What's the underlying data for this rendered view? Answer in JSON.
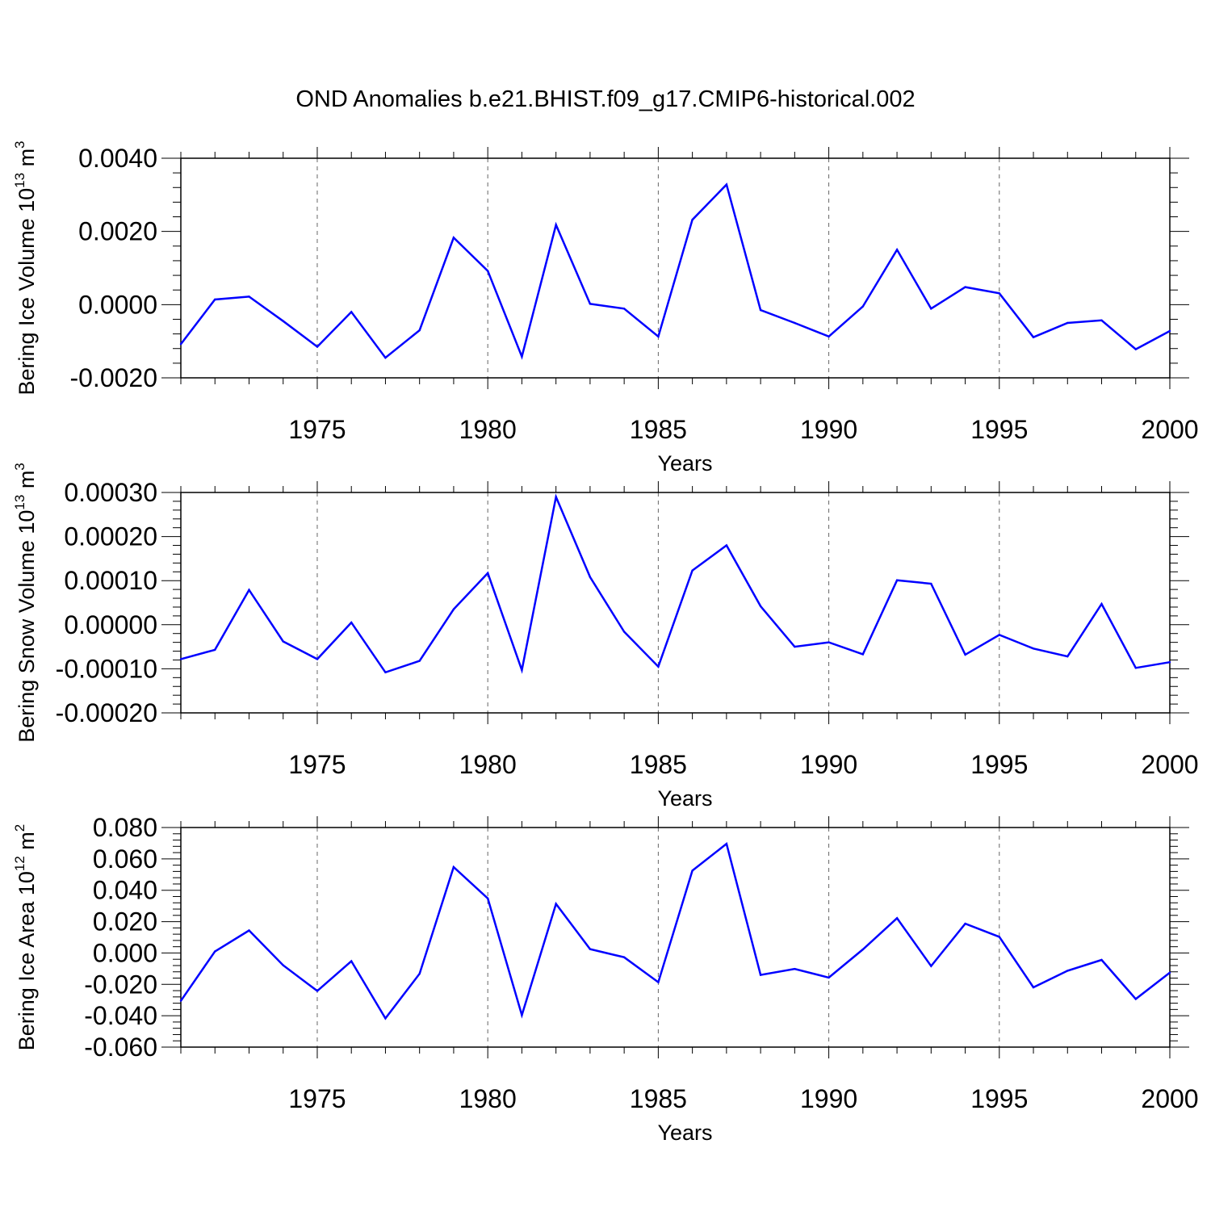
{
  "title": "OND Anomalies b.e21.BHIST.f09_g17.CMIP6-historical.002",
  "chart_data": [
    {
      "type": "line",
      "ylabel": {
        "main": "Bering Ice Volume 10",
        "exponent": "13",
        "unit": " m",
        "unit_exponent": "3"
      },
      "xlabel": "Years",
      "xlim": [
        1971,
        2000
      ],
      "xticks": [
        "1975",
        "1980",
        "1985",
        "1990",
        "1995",
        "2000"
      ],
      "ylim": [
        -0.002,
        0.004
      ],
      "yticks": [
        "-0.0020",
        "0.0000",
        "0.0020",
        "0.0040"
      ],
      "grid": "vertical dashed",
      "color": "#0000ff",
      "x": [
        1971,
        1972,
        1973,
        1974,
        1975,
        1976,
        1977,
        1978,
        1979,
        1980,
        1981,
        1982,
        1983,
        1984,
        1985,
        1986,
        1987,
        1988,
        1989,
        1990,
        1991,
        1992,
        1993,
        1994,
        1995,
        1996,
        1997,
        1998,
        1999,
        2000
      ],
      "values": [
        -0.00108,
        0.00014,
        0.00022,
        -0.00045,
        -0.00115,
        -0.0002,
        -0.00145,
        -0.0007,
        0.00183,
        0.00092,
        -0.00142,
        0.00218,
        2e-05,
        -0.00011,
        -0.00087,
        0.00232,
        0.00328,
        -0.00015,
        -0.0005,
        -0.00087,
        -5e-05,
        0.0015,
        -0.00011,
        0.00048,
        0.00031,
        -0.00089,
        -0.0005,
        -0.00043,
        -0.00122,
        -0.00072
      ]
    },
    {
      "type": "line",
      "ylabel": {
        "main": "Bering Snow Volume 10",
        "exponent": "13",
        "unit": " m",
        "unit_exponent": "3"
      },
      "xlabel": "Years",
      "xlim": [
        1971,
        2000
      ],
      "xticks": [
        "1975",
        "1980",
        "1985",
        "1990",
        "1995",
        "2000"
      ],
      "ylim": [
        -0.0002,
        0.0003
      ],
      "yticks": [
        "-0.00020",
        "-0.00010",
        "0.00000",
        "0.00010",
        "0.00020",
        "0.00030"
      ],
      "grid": "vertical dashed",
      "color": "#0000ff",
      "x": [
        1971,
        1972,
        1973,
        1974,
        1975,
        1976,
        1977,
        1978,
        1979,
        1980,
        1981,
        1982,
        1983,
        1984,
        1985,
        1986,
        1987,
        1988,
        1989,
        1990,
        1991,
        1992,
        1993,
        1994,
        1995,
        1996,
        1997,
        1998,
        1999,
        2000
      ],
      "values": [
        -7.8e-05,
        -5.7e-05,
        7.9e-05,
        -3.8e-05,
        -7.8e-05,
        5e-06,
        -0.000108,
        -8.2e-05,
        3.5e-05,
        0.000117,
        -0.000103,
        0.00029,
        0.000108,
        -1.6e-05,
        -9.5e-05,
        0.000123,
        0.00018,
        4.2e-05,
        -5e-05,
        -4e-05,
        -6.7e-05,
        0.000101,
        9.3e-05,
        -6.8e-05,
        -2.3e-05,
        -5.4e-05,
        -7.2e-05,
        4.7e-05,
        -9.8e-05,
        -8.5e-05
      ]
    },
    {
      "type": "line",
      "ylabel": {
        "main": "Bering Ice Area 10",
        "exponent": "12",
        "unit": " m",
        "unit_exponent": "2"
      },
      "xlabel": "Years",
      "xlim": [
        1971,
        2000
      ],
      "xticks": [
        "1975",
        "1980",
        "1985",
        "1990",
        "1995",
        "2000"
      ],
      "ylim": [
        -0.06,
        0.08
      ],
      "yticks": [
        "-0.060",
        "-0.040",
        "-0.020",
        "0.000",
        "0.020",
        "0.040",
        "0.060",
        "0.080"
      ],
      "grid": "vertical dashed",
      "color": "#0000ff",
      "x": [
        1971,
        1972,
        1973,
        1974,
        1975,
        1976,
        1977,
        1978,
        1979,
        1980,
        1981,
        1982,
        1983,
        1984,
        1985,
        1986,
        1987,
        1988,
        1989,
        1990,
        1991,
        1992,
        1993,
        1994,
        1995,
        1996,
        1997,
        1998,
        1999,
        2000
      ],
      "values": [
        -0.0305,
        0.001,
        0.0144,
        -0.0078,
        -0.0242,
        -0.0052,
        -0.0417,
        -0.0132,
        0.0548,
        0.0348,
        -0.0396,
        0.0313,
        0.0025,
        -0.0027,
        -0.0186,
        0.0525,
        0.0696,
        -0.014,
        -0.0102,
        -0.0157,
        0.0023,
        0.0222,
        -0.0083,
        0.0187,
        0.0103,
        -0.0219,
        -0.0113,
        -0.0044,
        -0.0293,
        -0.0125
      ]
    }
  ]
}
